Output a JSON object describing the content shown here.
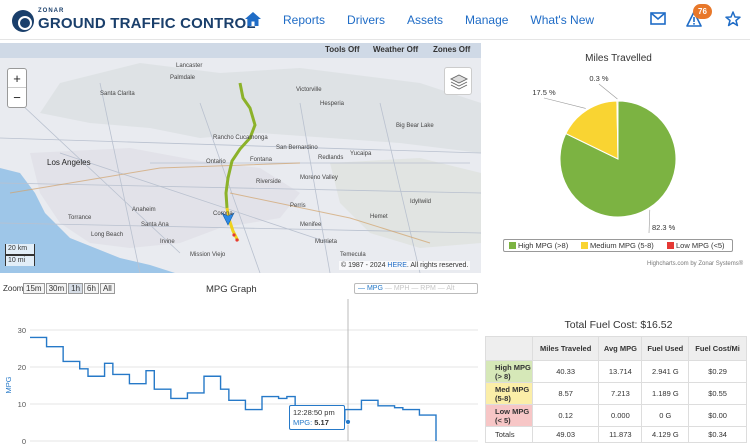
{
  "brand": {
    "small": "ZONAR",
    "name": "GROUND TRAFFIC CONTROL"
  },
  "nav": {
    "links": [
      "Reports",
      "Drivers",
      "Assets",
      "Manage",
      "What's New"
    ],
    "alerts_count": "76"
  },
  "map": {
    "toolbar": [
      "Tools Off",
      "Weather Off",
      "Zones Off"
    ],
    "zoom_in": "+",
    "zoom_out": "−",
    "scale": [
      "20 km",
      "10 mi"
    ],
    "copyright_prefix": "© 1987 - 2024 ",
    "copyright_link": "HERE",
    "copyright_suffix": ". All rights reserved.",
    "place_labels": [
      "Los Angeles",
      "Santa Clarita",
      "Rancho Cucamonga",
      "San Bernardino",
      "Fontana",
      "Ontario",
      "Riverside",
      "Corona",
      "Anaheim",
      "Santa Ana",
      "Irvine",
      "Torrance",
      "Long Beach",
      "Hemet",
      "Temecula",
      "Mission Viejo",
      "Redlands",
      "Yucaipa",
      "Moreno Valley",
      "Perris",
      "Menifee",
      "Murrieta",
      "Victorville",
      "Palmdale",
      "Lancaster",
      "Hesperia",
      "Big Bear Lake",
      "Idyllwild"
    ]
  },
  "pie": {
    "title": "Miles Travelled",
    "slices": [
      {
        "name": "High MPG (>8)",
        "value": 82.3,
        "label": "82.3 %",
        "color": "#7cb342"
      },
      {
        "name": "Medium MPG (5-8)",
        "value": 17.5,
        "label": "17.5 %",
        "color": "#f9d432"
      },
      {
        "name": "Low MPG (<5)",
        "value": 0.3,
        "label": "0.3 %",
        "color": "#e53935"
      }
    ],
    "legend": [
      "High MPG (>8)",
      "Medium MPG (5-8)",
      "Low MPG (<5)"
    ],
    "credits": "Highcharts.com by Zonar Systems®"
  },
  "graph": {
    "zoom_label": "Zoom",
    "zoom_options": [
      "15m",
      "30m",
      "1h",
      "6h",
      "All"
    ],
    "title": "MPG Graph",
    "series_legend": [
      {
        "name": "MPG",
        "active": true
      },
      {
        "name": "MPH",
        "active": false
      },
      {
        "name": "RPM",
        "active": false
      },
      {
        "name": "Alt",
        "active": false
      }
    ],
    "ylabel": "MPG",
    "tooltip_time": "12:28:50 pm",
    "tooltip_label": "MPG: ",
    "tooltip_value": "5.17"
  },
  "chart_data": {
    "type": "line",
    "title": "MPG Graph",
    "ylabel": "MPG",
    "ylim": [
      0,
      30
    ],
    "yticks": [
      "0",
      "10",
      "20",
      "30"
    ],
    "series": [
      {
        "name": "MPG",
        "values": [
          28,
          28,
          25.5,
          25.5,
          21.5,
          21.5,
          19.5,
          17.5,
          17.5,
          21,
          18,
          18,
          15.5,
          15.5,
          19,
          14,
          14,
          11.5,
          11.5,
          13,
          13,
          17.5,
          17.5,
          14,
          11,
          11,
          8.5,
          8.5,
          12,
          12,
          11.5,
          12,
          9.5,
          9.5,
          7.5,
          7.5,
          5.17,
          5.17,
          8.5,
          8.5,
          11,
          11,
          9.5,
          9.5,
          9,
          8.5,
          8.5,
          7,
          7,
          0
        ]
      }
    ]
  },
  "fuel": {
    "title": "Total Fuel Cost: $16.52",
    "headers": [
      "",
      "Miles Traveled",
      "Avg MPG",
      "Fuel Used",
      "Fuel Cost/Mi"
    ],
    "rows": [
      {
        "label1": "High MPG",
        "label2": "(> 8)",
        "miles": "40.33",
        "avg": "13.714",
        "used": "2.941 G",
        "cost": "$0.29"
      },
      {
        "label1": "Med MPG",
        "label2": "(5-8)",
        "miles": "8.57",
        "avg": "7.213",
        "used": "1.189 G",
        "cost": "$0.55"
      },
      {
        "label1": "Low MPG",
        "label2": "(< 5)",
        "miles": "0.12",
        "avg": "0.000",
        "used": "0 G",
        "cost": "$0.00"
      }
    ],
    "totals": {
      "label": "Totals",
      "miles": "49.03",
      "avg": "11.873",
      "used": "4.129 G",
      "cost": "$0.34"
    }
  }
}
